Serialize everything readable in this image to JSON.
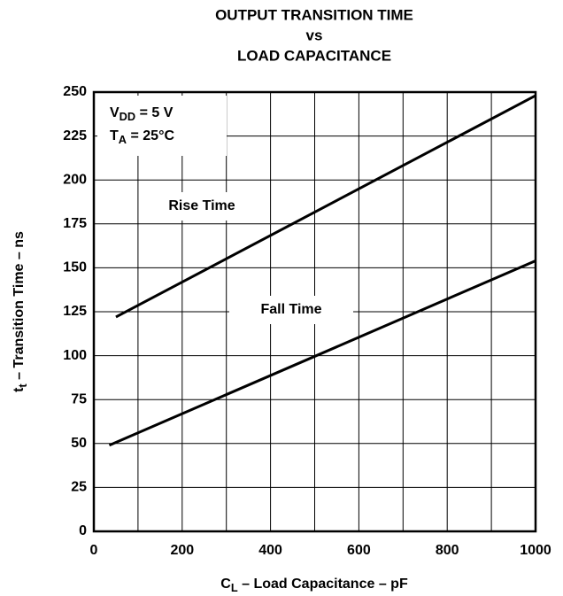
{
  "chart_data": {
    "type": "line",
    "title": [
      "OUTPUT TRANSITION TIME",
      "vs",
      "LOAD CAPACITANCE"
    ],
    "x_label": {
      "main": "C",
      "sub": "L",
      "rest": " – Load Capacitance – pF"
    },
    "y_label": {
      "main": "t",
      "sub": "t",
      "rest": " – Transition Time – ns"
    },
    "annotations": [
      {
        "main": "V",
        "sub": "DD",
        "rest": " = 5 V"
      },
      {
        "main": "T",
        "sub": "A",
        "rest": " = 25°C"
      }
    ],
    "series": [
      {
        "name": "Rise Time",
        "color": "#000000",
        "x": [
          50,
          1000
        ],
        "values": [
          122,
          248
        ]
      },
      {
        "name": "Fall Time",
        "color": "#000000",
        "x": [
          35,
          1000
        ],
        "values": [
          49,
          154
        ]
      }
    ],
    "xlim": [
      0,
      1000
    ],
    "ylim": [
      0,
      250
    ],
    "xticks": [
      0,
      200,
      400,
      600,
      800,
      1000
    ],
    "x_minor_grid": [
      100,
      300,
      500,
      700,
      900
    ],
    "yticks": [
      0,
      25,
      50,
      75,
      100,
      125,
      150,
      175,
      200,
      225,
      250
    ],
    "grid": true
  }
}
